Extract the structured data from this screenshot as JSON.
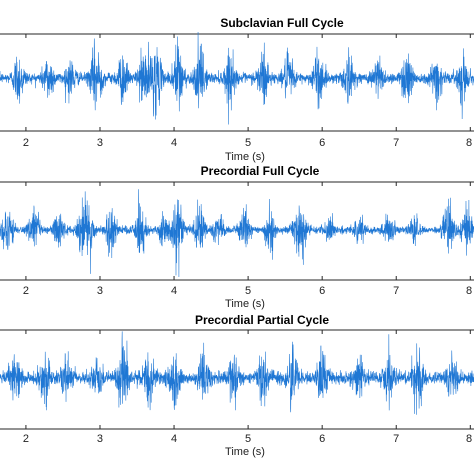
{
  "colors": {
    "signal": "#1f77d4",
    "axis": "#262626",
    "background": "#ffffff"
  },
  "chart_data": [
    {
      "type": "line",
      "title": "Subclavian Full Cycle",
      "xlabel": "Time (s)",
      "ylabel": "",
      "xlim": [
        1.65,
        8.05
      ],
      "xticks": [
        "2",
        "3",
        "4",
        "5",
        "6",
        "7",
        "8"
      ],
      "grid": false,
      "bursts": [
        {
          "t": 1.9,
          "a": 0.55
        },
        {
          "t": 2.3,
          "a": 0.5
        },
        {
          "t": 2.6,
          "a": 0.4
        },
        {
          "t": 2.95,
          "a": 0.8
        },
        {
          "t": 3.3,
          "a": 0.5
        },
        {
          "t": 3.6,
          "a": 0.7
        },
        {
          "t": 3.75,
          "a": 0.75
        },
        {
          "t": 4.05,
          "a": 0.9
        },
        {
          "t": 4.35,
          "a": 0.7
        },
        {
          "t": 4.75,
          "a": 0.55
        },
        {
          "t": 5.2,
          "a": 0.7
        },
        {
          "t": 5.55,
          "a": 0.5
        },
        {
          "t": 5.95,
          "a": 0.6
        },
        {
          "t": 6.35,
          "a": 0.55
        },
        {
          "t": 6.75,
          "a": 0.5
        },
        {
          "t": 7.15,
          "a": 0.6
        },
        {
          "t": 7.55,
          "a": 0.55
        },
        {
          "t": 7.9,
          "a": 0.5
        }
      ],
      "baseline": 0.12
    },
    {
      "type": "line",
      "title": "Precordial Full Cycle",
      "xlabel": "Time (s)",
      "ylabel": "",
      "xlim": [
        1.65,
        8.05
      ],
      "xticks": [
        "2",
        "3",
        "4",
        "5",
        "6",
        "7",
        "8"
      ],
      "grid": false,
      "bursts": [
        {
          "t": 1.75,
          "a": 0.6
        },
        {
          "t": 2.1,
          "a": 0.55
        },
        {
          "t": 2.45,
          "a": 0.5
        },
        {
          "t": 2.75,
          "a": 0.4
        },
        {
          "t": 2.85,
          "a": 0.6
        },
        {
          "t": 3.15,
          "a": 0.55
        },
        {
          "t": 3.55,
          "a": 0.6
        },
        {
          "t": 3.85,
          "a": 0.4
        },
        {
          "t": 4.05,
          "a": 0.95
        },
        {
          "t": 4.35,
          "a": 0.6
        },
        {
          "t": 4.6,
          "a": 0.35
        },
        {
          "t": 4.95,
          "a": 0.45
        },
        {
          "t": 5.3,
          "a": 0.6
        },
        {
          "t": 5.7,
          "a": 0.65
        },
        {
          "t": 6.1,
          "a": 0.3
        },
        {
          "t": 6.5,
          "a": 0.35
        },
        {
          "t": 6.9,
          "a": 0.3
        },
        {
          "t": 7.25,
          "a": 0.3
        },
        {
          "t": 7.7,
          "a": 0.6
        },
        {
          "t": 7.95,
          "a": 0.6
        }
      ],
      "baseline": 0.08
    },
    {
      "type": "line",
      "title": "Precordial Partial Cycle",
      "xlabel": "Time (s)",
      "ylabel": "",
      "xlim": [
        1.65,
        8.05
      ],
      "xticks": [
        "2",
        "3",
        "4",
        "5",
        "6",
        "7",
        "8"
      ],
      "grid": false,
      "bursts": [
        {
          "t": 1.85,
          "a": 0.5
        },
        {
          "t": 2.25,
          "a": 0.45
        },
        {
          "t": 2.55,
          "a": 0.5
        },
        {
          "t": 2.95,
          "a": 0.55
        },
        {
          "t": 3.3,
          "a": 0.9
        },
        {
          "t": 3.65,
          "a": 0.55
        },
        {
          "t": 4.0,
          "a": 0.6
        },
        {
          "t": 4.4,
          "a": 0.5
        },
        {
          "t": 4.8,
          "a": 0.45
        },
        {
          "t": 5.2,
          "a": 0.55
        },
        {
          "t": 5.6,
          "a": 0.5
        },
        {
          "t": 6.0,
          "a": 0.55
        },
        {
          "t": 6.5,
          "a": 0.45
        },
        {
          "t": 6.9,
          "a": 0.5
        },
        {
          "t": 7.3,
          "a": 0.6
        },
        {
          "t": 7.75,
          "a": 0.45
        }
      ],
      "baseline": 0.14
    }
  ]
}
